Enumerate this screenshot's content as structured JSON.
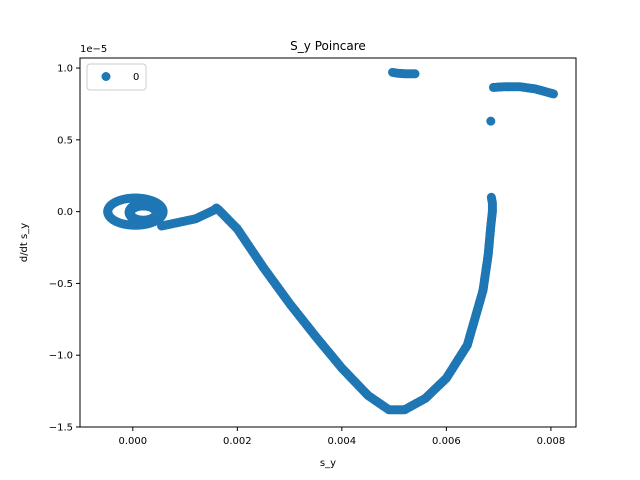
{
  "chart_data": {
    "type": "scatter",
    "title": "S_y Poincare",
    "xlabel": "s_y",
    "ylabel": "d/dt s_y",
    "y_scale_label": "1e−5",
    "xlim": [
      -0.00101,
      0.00848
    ],
    "ylim": [
      -1.5e-05,
      1.07e-05
    ],
    "x_ticks": [
      0.0,
      0.002,
      0.004,
      0.006,
      0.008
    ],
    "x_tick_labels": [
      "0.000",
      "0.002",
      "0.004",
      "0.006",
      "0.008"
    ],
    "y_ticks": [
      -1.5e-05,
      -1e-05,
      -5e-06,
      0.0,
      5e-06,
      1e-05
    ],
    "y_tick_labels": [
      "−1.5",
      "−1.0",
      "−0.5",
      "0.0",
      "0.5",
      "1.0"
    ],
    "grid": false,
    "legend_position": "top-left",
    "marker_color": "#1f77b4",
    "series": [
      {
        "name": "0",
        "segments": [
          {
            "kind": "loop",
            "cx": 5e-05,
            "cy": 0.0,
            "rx": 0.00053,
            "ry": 9.5e-07
          },
          {
            "kind": "loop",
            "cx": 0.00025,
            "cy": -5e-08,
            "rx": 0.00032,
            "ry": 6.5e-07
          },
          {
            "kind": "loop",
            "cx": 0.0002,
            "cy": -1e-07,
            "rx": 0.00025,
            "ry": 5e-07
          },
          {
            "kind": "path",
            "points": [
              [
                0.00055,
                -1e-06
              ],
              [
                0.0012,
                -5e-07
              ],
              [
                0.00155,
                1e-07
              ],
              [
                0.0016,
                2.5e-07
              ],
              [
                0.00165,
                1e-07
              ],
              [
                0.002,
                -1.2e-06
              ],
              [
                0.0025,
                -3.9e-06
              ],
              [
                0.003,
                -6.4e-06
              ],
              [
                0.0035,
                -8.7e-06
              ],
              [
                0.004,
                -1.09e-05
              ],
              [
                0.0045,
                -1.28e-05
              ],
              [
                0.0049,
                -1.38e-05
              ],
              [
                0.0052,
                -1.38e-05
              ],
              [
                0.0056,
                -1.3e-05
              ],
              [
                0.006,
                -1.16e-05
              ],
              [
                0.0064,
                -9.3e-06
              ],
              [
                0.0067,
                -5.5e-06
              ],
              [
                0.0068,
                -3e-06
              ],
              [
                0.00685,
                -1e-06
              ],
              [
                0.00688,
                0.0
              ],
              [
                0.00688,
                6e-07
              ],
              [
                0.00686,
                1e-06
              ]
            ]
          },
          {
            "kind": "path",
            "points": [
              [
                0.00497,
                9.7e-06
              ],
              [
                0.00505,
                9.65e-06
              ],
              [
                0.0052,
                9.6e-06
              ],
              [
                0.0054,
                9.6e-06
              ]
            ]
          },
          {
            "kind": "path",
            "points": [
              [
                0.0069,
                8.65e-06
              ],
              [
                0.0071,
                8.7e-06
              ],
              [
                0.0074,
                8.7e-06
              ],
              [
                0.0077,
                8.55e-06
              ],
              [
                0.0079,
                8.35e-06
              ],
              [
                0.00805,
                8.2e-06
              ]
            ]
          },
          {
            "kind": "point",
            "points": [
              [
                0.00685,
                6.3e-06
              ]
            ]
          }
        ]
      }
    ]
  }
}
